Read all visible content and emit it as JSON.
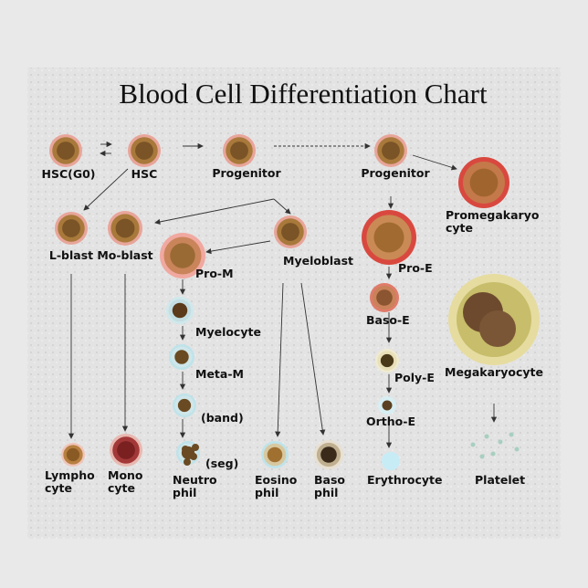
{
  "title": "Blood Cell Differentiation Chart",
  "nodes": [
    {
      "label": [
        "HSC(G0)"
      ]
    },
    {
      "label": [
        "HSC"
      ]
    },
    {
      "label": [
        "Progenitor"
      ]
    },
    {
      "label": [
        "Progenitor"
      ]
    },
    {
      "label": [
        "Promegakaryo",
        "cyte"
      ]
    },
    {
      "label": [
        "L-blast"
      ]
    },
    {
      "label": [
        "Mo-blast"
      ]
    },
    {
      "label": [
        "Pro-M"
      ]
    },
    {
      "label": [
        "Myeloblast"
      ]
    },
    {
      "label": [
        "Pro-E"
      ]
    },
    {
      "label": [
        "Megakaryocyte"
      ]
    },
    {
      "label": [
        "Myelocyte"
      ]
    },
    {
      "label": [
        "Baso-E"
      ]
    },
    {
      "label": [
        "Meta-M"
      ]
    },
    {
      "label": [
        "Poly-E"
      ]
    },
    {
      "label": [
        "(band)"
      ]
    },
    {
      "label": [
        "Ortho-E"
      ]
    },
    {
      "label": [
        "(seg)"
      ]
    },
    {
      "label": [
        "Lympho",
        "cyte"
      ]
    },
    {
      "label": [
        "Mono",
        "cyte"
      ]
    },
    {
      "label": [
        "Neutro",
        "phil"
      ]
    },
    {
      "label": [
        "Eosino",
        "phil"
      ]
    },
    {
      "label": [
        "Baso",
        "phil"
      ]
    },
    {
      "label": [
        "Erythrocyte"
      ]
    },
    {
      "label": [
        "Platelet"
      ]
    }
  ]
}
